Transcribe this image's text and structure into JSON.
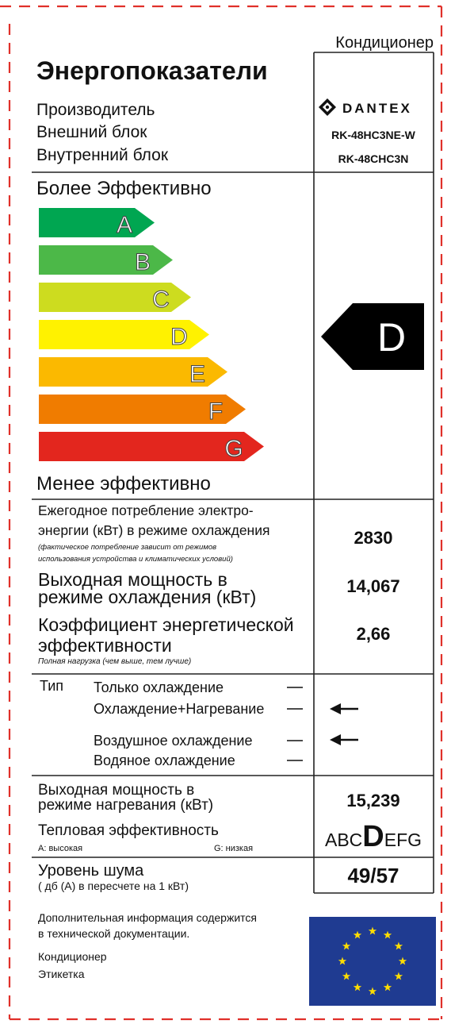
{
  "header": {
    "product": "Кондиционер",
    "title": "Энергопоказатели",
    "manufacturer_label": "Производитель",
    "brand": "DANTEX",
    "outdoor_label": "Внешний блок",
    "outdoor_model": "RK-48HC3NE-W",
    "indoor_label": "Внутренний блок",
    "indoor_model": "RK-48CHC3N"
  },
  "scale": {
    "top_label": "Более Эффективно",
    "classes": [
      "A",
      "B",
      "C",
      "D",
      "E",
      "F",
      "G"
    ],
    "colors": [
      "#00a651",
      "#4cb848",
      "#cddc1f",
      "#fff200",
      "#fbb900",
      "#f07c00",
      "#e3261e"
    ],
    "rating": "D",
    "bottom_label": "Менее эффективно"
  },
  "cooling": {
    "consumption_lines": [
      "Ежегодное потребление электро-",
      "энергии (кВт) в режиме охлаждения"
    ],
    "consumption_note": [
      "(фактическое потребление зависит от режимов",
      "использования устройства и климатических условий)"
    ],
    "consumption_value": "2830",
    "output_lines": [
      "Выходная мощность в",
      "режиме охлаждения (кВт)"
    ],
    "output_value": "14,067",
    "eer_lines": [
      "Коэффициент энергетической",
      "эффективности"
    ],
    "eer_note": "Полная нагрузка (чем выше, тем лучше)",
    "eer_value": "2,66"
  },
  "type": {
    "label": "Тип",
    "options": [
      "Только охлаждение",
      "Охлаждение+Нагревание",
      "Воздушное охлаждение",
      "Водяное охлаждение"
    ]
  },
  "heating": {
    "output_lines": [
      "Выходная мощность в",
      "режиме нагревания (кВт)"
    ],
    "output_value": "15,239",
    "efficiency_label": "Тепловая эффективность",
    "high_label": "A: высокая",
    "low_label": "G: низкая",
    "efficiency_scale": [
      "A",
      "B",
      "C",
      "D",
      "E",
      "F",
      "G"
    ],
    "efficiency_class": "D"
  },
  "noise": {
    "label": "Уровень шума",
    "unit": "( дб (А) в пересчете на 1 кВт)",
    "value": "49/57"
  },
  "footer": {
    "info_lines": [
      "Дополнительная информация содержится",
      "в технической документации."
    ],
    "product": "Кондиционер",
    "label": "Этикетка"
  }
}
